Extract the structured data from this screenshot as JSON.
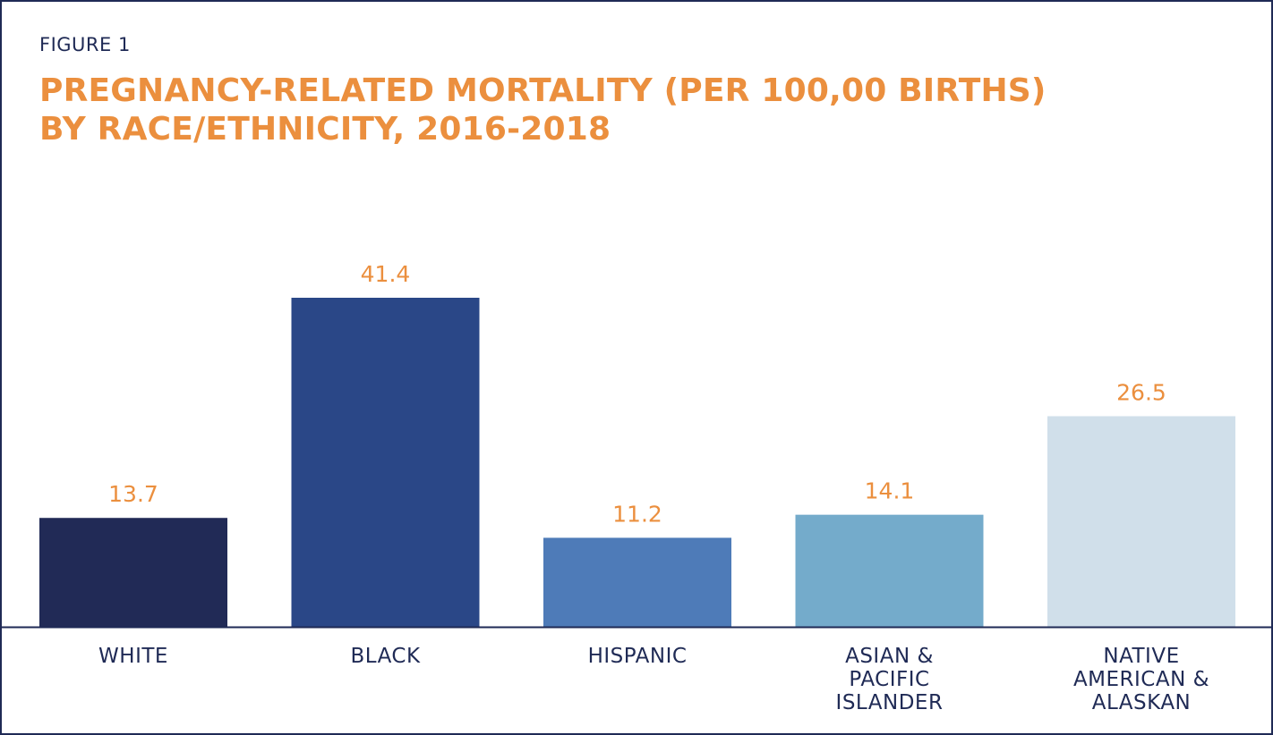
{
  "figure_label": "FIGURE 1",
  "chart_data": {
    "type": "bar",
    "title_lines": [
      "PREGNANCY-RELATED MORTALITY (PER 100,00 BIRTHS)",
      "BY RACE/ETHNICITY, 2016-2018"
    ],
    "categories": [
      [
        "WHITE"
      ],
      [
        "BLACK"
      ],
      [
        "HISPANIC"
      ],
      [
        "ASIAN &",
        "PACIFIC",
        "ISLANDER"
      ],
      [
        "NATIVE",
        "AMERICAN &",
        "ALASKAN"
      ]
    ],
    "values": [
      13.7,
      41.4,
      11.2,
      14.1,
      26.5
    ],
    "value_labels": [
      "13.7",
      "41.4",
      "11.2",
      "14.1",
      "26.5"
    ],
    "colors": [
      "#212a56",
      "#2a4787",
      "#4e7bb8",
      "#74abcb",
      "#d0dfea"
    ],
    "label_color": "#eb8f3e",
    "axis_color": "#1f2a55",
    "ylim": [
      0,
      41.4
    ],
    "grid": false,
    "legend": "none"
  }
}
